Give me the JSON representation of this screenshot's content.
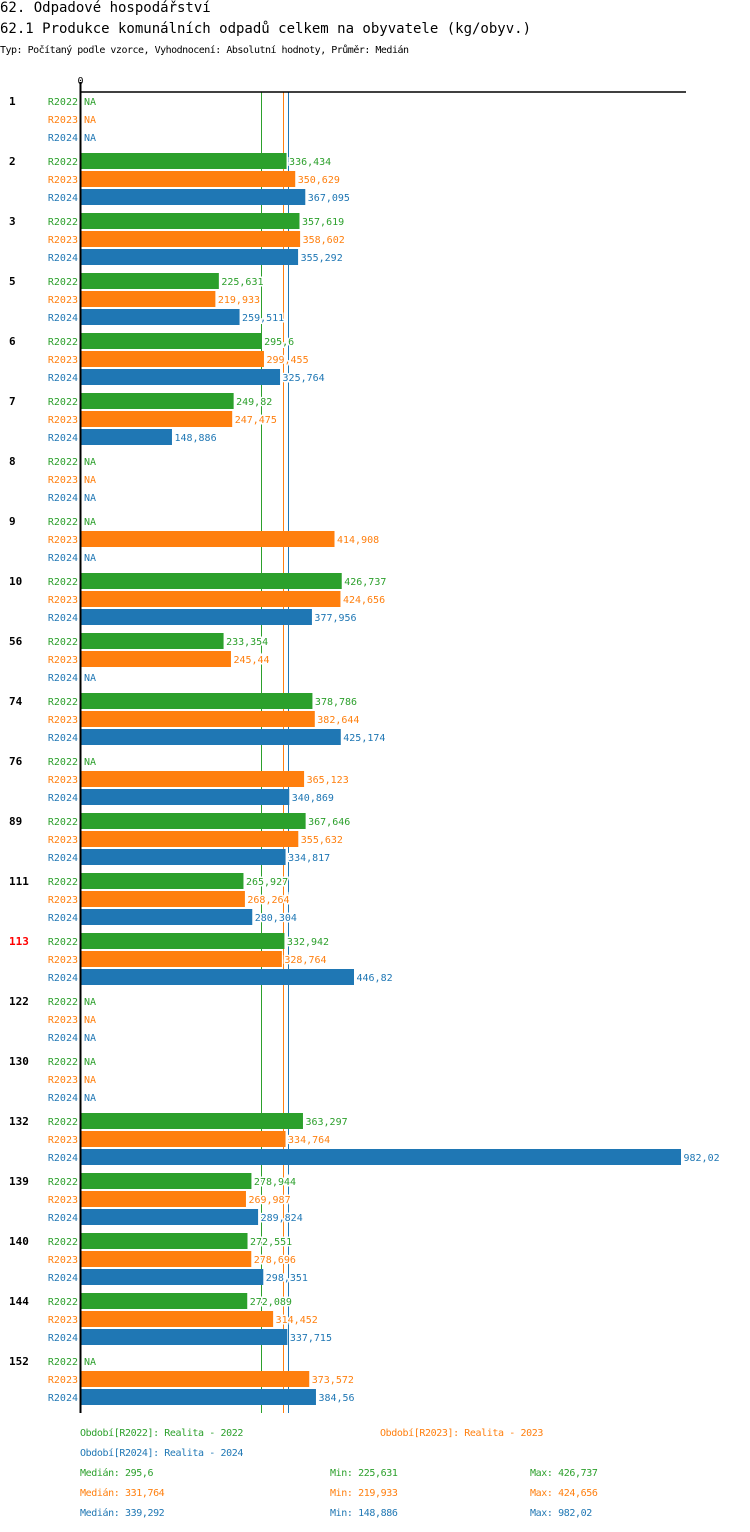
{
  "header": {
    "section_title": "62. Odpadové hospodářství",
    "chart_title": "62.1 Produkce komunálních odpadů celkem na obyvatele (kg/obyv.)",
    "subtitle": "Typ: Počítaný podle vzorce, Vyhodnocení: Absolutní hodnoty, Průměr: Medián"
  },
  "colors": {
    "R2022": "#2ca02c",
    "R2023": "#ff7f0e",
    "R2024": "#1f77b4",
    "highlight": "#ff0000",
    "axis": "#000000"
  },
  "chart_data": {
    "type": "bar",
    "orientation": "horizontal",
    "title": "62.1 Produkce komunálních odpadů celkem na obyvatele (kg/obyv.)",
    "xlabel": "",
    "ylabel": "",
    "x_tick_labels": [
      "0"
    ],
    "xlim": [
      0,
      982.02
    ],
    "grid": false,
    "series_names": [
      "R2022",
      "R2023",
      "R2024"
    ],
    "highlighted_category": "113",
    "na_label": "NA",
    "categories": [
      "1",
      "2",
      "3",
      "5",
      "6",
      "7",
      "8",
      "9",
      "10",
      "56",
      "74",
      "76",
      "89",
      "111",
      "113",
      "122",
      "130",
      "132",
      "139",
      "140",
      "144",
      "152"
    ],
    "series": [
      {
        "name": "R2022",
        "values": [
          null,
          336.434,
          357.619,
          225.631,
          295.6,
          249.82,
          null,
          null,
          426.737,
          233.354,
          378.786,
          null,
          367.646,
          265.927,
          332.942,
          null,
          null,
          363.297,
          278.944,
          272.551,
          272.089,
          null
        ],
        "labels": [
          "NA",
          "336,434",
          "357,619",
          "225,631",
          "295,6",
          "249,82",
          "NA",
          "NA",
          "426,737",
          "233,354",
          "378,786",
          "NA",
          "367,646",
          "265,927",
          "332,942",
          "NA",
          "NA",
          "363,297",
          "278,944",
          "272,551",
          "272,089",
          "NA"
        ]
      },
      {
        "name": "R2023",
        "values": [
          null,
          350.629,
          358.602,
          219.933,
          299.455,
          247.475,
          null,
          414.908,
          424.656,
          245.44,
          382.644,
          365.123,
          355.632,
          268.264,
          328.764,
          null,
          null,
          334.764,
          269.987,
          278.696,
          314.452,
          373.572
        ],
        "labels": [
          "NA",
          "350,629",
          "358,602",
          "219,933",
          "299,455",
          "247,475",
          "NA",
          "414,908",
          "424,656",
          "245,44",
          "382,644",
          "365,123",
          "355,632",
          "268,264",
          "328,764",
          "NA",
          "NA",
          "334,764",
          "269,987",
          "278,696",
          "314,452",
          "373,572"
        ]
      },
      {
        "name": "R2024",
        "values": [
          null,
          367.095,
          355.292,
          259.511,
          325.764,
          148.886,
          null,
          null,
          377.956,
          null,
          425.174,
          340.869,
          334.817,
          280.304,
          446.82,
          null,
          null,
          982.02,
          289.824,
          298.351,
          337.715,
          384.56
        ],
        "labels": [
          "NA",
          "367,095",
          "355,292",
          "259,511",
          "325,764",
          "148,886",
          "NA",
          "NA",
          "377,956",
          "NA",
          "425,174",
          "340,869",
          "334,817",
          "280,304",
          "446,82",
          "NA",
          "NA",
          "982,02",
          "289,824",
          "298,351",
          "337,715",
          "384,56"
        ]
      }
    ],
    "reference_lines": [
      {
        "series": "R2022",
        "type": "median",
        "value": 295.6
      },
      {
        "series": "R2023",
        "type": "median",
        "value": 331.764
      },
      {
        "series": "R2024",
        "type": "median",
        "value": 339.292
      }
    ]
  },
  "legend": {
    "periods": [
      {
        "series": "R2022",
        "text": "Období[R2022]: Realita - 2022"
      },
      {
        "series": "R2023",
        "text": "Období[R2023]: Realita - 2023"
      },
      {
        "series": "R2024",
        "text": "Období[R2024]: Realita - 2024"
      }
    ],
    "stats": [
      {
        "series": "R2022",
        "median": "Medián: 295,6",
        "min": "Min: 225,631",
        "max": "Max: 426,737"
      },
      {
        "series": "R2023",
        "median": "Medián: 331,764",
        "min": "Min: 219,933",
        "max": "Max: 424,656"
      },
      {
        "series": "R2024",
        "median": "Medián: 339,292",
        "min": "Min: 148,886",
        "max": "Max: 982,02"
      }
    ]
  }
}
